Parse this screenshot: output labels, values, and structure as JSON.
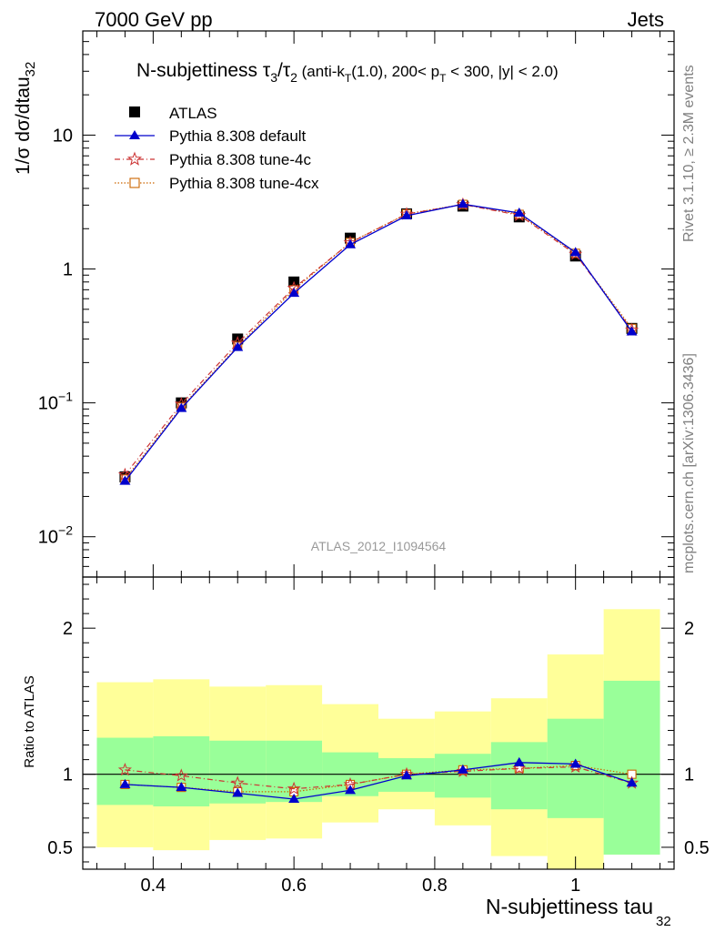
{
  "header": {
    "left": "7000 GeV pp",
    "right": "Jets"
  },
  "side_labels": {
    "rivet": "Rivet 3.1.10, ≥ 2.3M events",
    "source": "mcplots.cern.ch [arXiv:1306.3436]"
  },
  "colors": {
    "atlas": "#000000",
    "default": "#0000cc",
    "tune4c": "#cc3333",
    "tune4cx": "#cc6600",
    "band_outer": "#ffff99",
    "band_inner": "#99ff99"
  },
  "chart_data": [
    {
      "type": "line",
      "title": "N-subjettiness τ₃/τ₂ (anti-k_T(1.0), 200< p_T < 300, |y| < 2.0)",
      "title_parts": {
        "main": "N-subjettiness ",
        "tau3": "τ",
        "tau3_sub": "3",
        "slash": "/",
        "tau2": "τ",
        "tau2_sub": "2",
        "p1": " (anti-k",
        "kt_sub": "T",
        "p2": "(1.0), 200< p",
        "pt_sub": "T",
        "p3": " < 300, |y| < 2.0)"
      },
      "ylabel": {
        "main": "1/σ dσ/dtau",
        "sub": "32"
      },
      "yscale": "log",
      "ylim": [
        0.005,
        60
      ],
      "y_ticks": [
        {
          "base": "10",
          "exp": "−2",
          "value": 0.01
        },
        {
          "base": "10",
          "exp": "−1",
          "value": 0.1
        },
        {
          "base": "1",
          "exp": "",
          "value": 1
        },
        {
          "base": "10",
          "exp": "",
          "value": 10
        }
      ],
      "xlim": [
        0.3,
        1.14
      ],
      "watermark": "ATLAS_2012_I1094564",
      "legend_position": "top-left",
      "x": [
        0.36,
        0.44,
        0.52,
        0.6,
        0.68,
        0.76,
        0.84,
        0.92,
        1.0,
        1.08
      ],
      "series": [
        {
          "name": "ATLAS",
          "marker": "square",
          "values": [
            0.028,
            0.1,
            0.3,
            0.8,
            1.7,
            2.58,
            2.95,
            2.45,
            1.25,
            0.36
          ]
        },
        {
          "name": "Pythia 8.308 default",
          "marker": "triangle",
          "values": [
            0.026,
            0.091,
            0.26,
            0.66,
            1.52,
            2.5,
            3.05,
            2.62,
            1.33,
            0.34
          ]
        },
        {
          "name": "Pythia 8.308 tune-4c",
          "marker": "star",
          "values": [
            0.029,
            0.098,
            0.28,
            0.72,
            1.57,
            2.57,
            3.03,
            2.52,
            1.29,
            0.35
          ]
        },
        {
          "name": "Pythia 8.308 tune-4cx",
          "marker": "opensquare",
          "values": [
            0.027,
            0.093,
            0.265,
            0.7,
            1.58,
            2.58,
            3.04,
            2.56,
            1.31,
            0.36
          ]
        }
      ]
    },
    {
      "type": "line",
      "ylabel": "Ratio to ATLAS",
      "xlabel": {
        "main": "N-subjettiness tau",
        "sub": "32"
      },
      "xlim": [
        0.3,
        1.14
      ],
      "ylim": [
        0.35,
        2.35
      ],
      "x_ticks": [
        "0.4",
        "0.6",
        "0.8",
        "1"
      ],
      "x_tick_values": [
        0.4,
        0.6,
        0.8,
        1.0
      ],
      "y_ticks": [
        "0.5",
        "1",
        "2"
      ],
      "y_tick_values": [
        0.5,
        1,
        2
      ],
      "bin_edges": [
        0.32,
        0.4,
        0.48,
        0.56,
        0.64,
        0.72,
        0.8,
        0.88,
        0.96,
        1.04,
        1.12
      ],
      "band_outer": {
        "low": [
          0.5,
          0.48,
          0.55,
          0.56,
          0.67,
          0.76,
          0.65,
          0.44,
          0.35,
          0.45
        ],
        "high": [
          1.63,
          1.65,
          1.6,
          1.61,
          1.48,
          1.38,
          1.43,
          1.52,
          1.82,
          2.13
        ]
      },
      "band_inner": {
        "low": [
          0.79,
          0.78,
          0.8,
          0.81,
          0.85,
          0.88,
          0.84,
          0.76,
          0.7,
          0.45
        ],
        "high": [
          1.25,
          1.26,
          1.23,
          1.23,
          1.15,
          1.11,
          1.14,
          1.22,
          1.38,
          1.64
        ]
      },
      "x": [
        0.36,
        0.44,
        0.52,
        0.6,
        0.68,
        0.76,
        0.84,
        0.92,
        1.0,
        1.08
      ],
      "series": [
        {
          "name": "Pythia 8.308 default",
          "marker": "triangle",
          "values": [
            0.93,
            0.91,
            0.87,
            0.83,
            0.89,
            0.99,
            1.03,
            1.08,
            1.07,
            0.94
          ]
        },
        {
          "name": "Pythia 8.308 tune-4c",
          "marker": "star",
          "values": [
            1.03,
            0.99,
            0.94,
            0.9,
            0.93,
            1.0,
            1.02,
            1.04,
            1.05,
            0.94
          ]
        },
        {
          "name": "Pythia 8.308 tune-4cx",
          "marker": "opensquare",
          "values": [
            0.93,
            0.91,
            0.88,
            0.88,
            0.93,
            1.0,
            1.03,
            1.04,
            1.06,
            1.0
          ]
        }
      ]
    }
  ]
}
